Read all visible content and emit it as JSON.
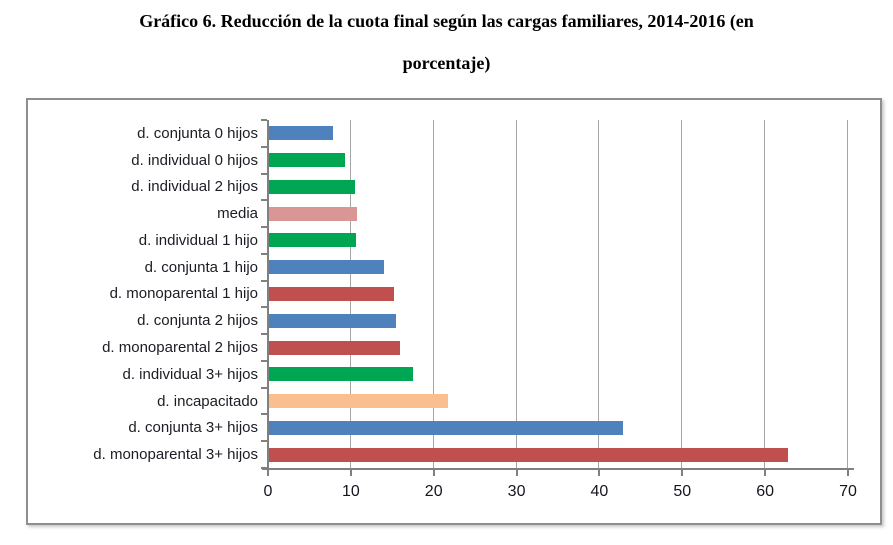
{
  "page": {
    "title_line1": "Gráfico 6. Reducción de la cuota final según las cargas familiares, 2014-2016 (en",
    "title_line2": "porcentaje)"
  },
  "chart_data": {
    "type": "bar",
    "orientation": "horizontal",
    "title": "Gráfico 6. Reducción de la cuota final según las cargas familiares, 2014-2016 (en porcentaje)",
    "categories": [
      "d. conjunta 0 hijos",
      "d. individual 0 hijos",
      "d. individual 2 hijos",
      "media",
      "d. individual 1 hijo",
      "d. conjunta 1 hijo",
      "d. monoparental 1 hijo",
      "d. conjunta 2 hijos",
      "d. monoparental 2 hijos",
      "d. individual 3+ hijos",
      "d. incapacitado",
      "d. conjunta 3+ hijos",
      "d. monoparental 3+ hijos"
    ],
    "values": [
      7.9,
      9.3,
      10.5,
      10.8,
      10.6,
      14.0,
      15.2,
      15.4,
      15.9,
      17.5,
      21.7,
      42.9,
      62.8
    ],
    "bar_colors": [
      "#4F81BD",
      "#00A651",
      "#00A651",
      "#D99694",
      "#00A651",
      "#4F81BD",
      "#C0504D",
      "#4F81BD",
      "#C0504D",
      "#00A651",
      "#FABF8F",
      "#4F81BD",
      "#C0504D"
    ],
    "xlabel": "",
    "ylabel": "",
    "xlim": [
      0,
      70
    ],
    "x_ticks": [
      0,
      10,
      20,
      30,
      40,
      50,
      60,
      70
    ],
    "grid": true,
    "legend_position": "none"
  },
  "style": {
    "axis_color": "#808080",
    "grid_color": "#a6a6a6",
    "text_color": "#1c1c24",
    "frame_border_color": "#8e8e8e"
  }
}
